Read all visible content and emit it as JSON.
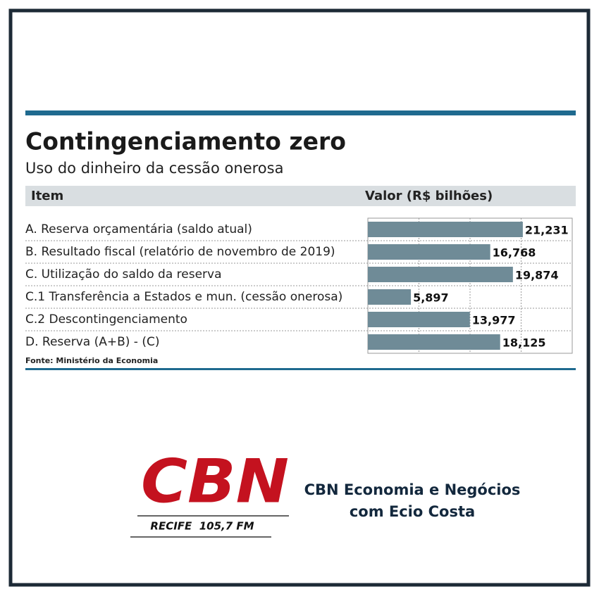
{
  "chart_data": {
    "type": "bar",
    "orientation": "horizontal",
    "title": "Contingenciamento zero",
    "subtitle": "Uso do dinheiro da cessão onerosa",
    "item_header": "Item",
    "value_header": "Valor (R$ bilhões)",
    "source": "Fonte: Ministério da Economia",
    "categories": [
      "A. Reserva orçamentária (saldo atual)",
      "B. Resultado fiscal (relatório de novembro de 2019)",
      "C. Utilização do saldo da reserva",
      "C.1 Transferência a Estados e mun. (cessão onerosa)",
      "C.2 Descontingenciamento",
      "D. Reserva (A+B) - (C)"
    ],
    "values": [
      21.231,
      16.768,
      19.874,
      5.897,
      13.977,
      18.125
    ],
    "value_labels": [
      "21,231",
      "16,768",
      "19,874",
      "5,897",
      "13,977",
      "18,125"
    ],
    "color": "#6f8b97",
    "xlim": [
      0,
      28
    ],
    "xticks": [
      7,
      14,
      21
    ],
    "grid": true
  },
  "branding": {
    "logo": "CBN",
    "station": "RECIFE  105,7 FM",
    "program": "CBN Economia e Negócios",
    "host": "com Ecio Costa"
  }
}
